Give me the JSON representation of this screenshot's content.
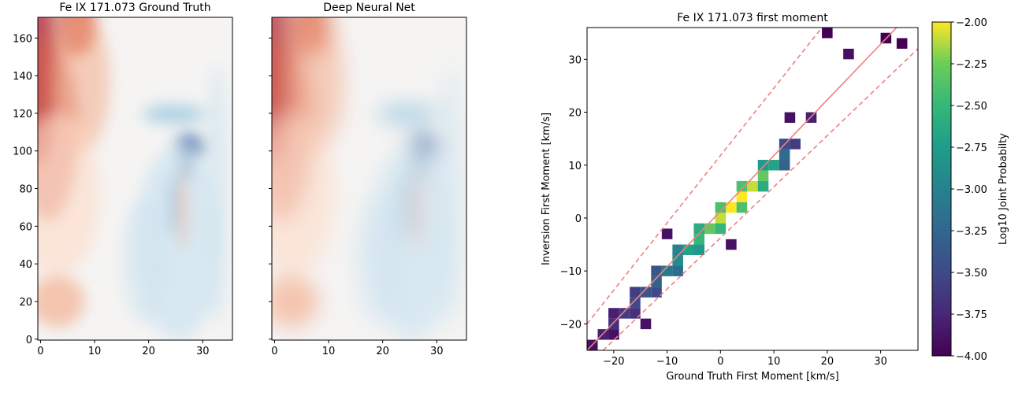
{
  "chart_data": [
    {
      "type": "heatmap",
      "title": "Fe IX 171.073 Ground Truth",
      "xlim": [
        -0.5,
        35.5
      ],
      "ylim": [
        -0.5,
        171
      ],
      "xticks": [
        0,
        10,
        20,
        30
      ],
      "yticks": [
        0,
        20,
        40,
        60,
        80,
        100,
        120,
        140,
        160
      ],
      "ytick_labels": true
    },
    {
      "type": "heatmap",
      "title": "Deep Neural Net",
      "xlim": [
        -0.5,
        35.5
      ],
      "ylim": [
        -0.5,
        171
      ],
      "xticks": [
        0,
        10,
        20,
        30
      ],
      "yticks": [
        0,
        20,
        40,
        60,
        80,
        100,
        120,
        140,
        160
      ],
      "ytick_labels": false
    },
    {
      "type": "hist2d",
      "title": "Fe IX 171.073 first moment",
      "xlabel": "Ground Truth First Moment [km/s]",
      "ylabel": "Inversion First Moment [km/s]",
      "xlim": [
        -25,
        37
      ],
      "ylim": [
        -25,
        36
      ],
      "xticks": [
        {
          "value": -20,
          "label": "−20"
        },
        {
          "value": -10,
          "label": "−10"
        },
        0,
        10,
        20,
        30
      ],
      "yticks": [
        {
          "value": -20,
          "label": "−20"
        },
        {
          "value": -10,
          "label": "−10"
        },
        0,
        10,
        20,
        30
      ],
      "colormap": "viridis",
      "cells": {
        "x": [
          -24,
          -22,
          -20,
          -18,
          -16,
          -14,
          -12,
          -10,
          -8,
          -6,
          -4,
          -2,
          0,
          2,
          4,
          6,
          8,
          10,
          12,
          14,
          -20,
          -16,
          -12,
          -8,
          -4,
          0,
          4,
          8,
          12,
          -20,
          -16,
          -12,
          -8,
          -4,
          0,
          4,
          8,
          12,
          20,
          24,
          31,
          34,
          13,
          -10,
          2,
          -14,
          17
        ],
        "y": [
          -24,
          -22,
          -20,
          -18,
          -16,
          -14,
          -12,
          -10,
          -8,
          -6,
          -4,
          -2,
          0,
          2,
          4,
          6,
          8,
          10,
          12,
          14,
          -18,
          -14,
          -10,
          -6,
          -2,
          2,
          6,
          10,
          14,
          -22,
          -18,
          -14,
          -10,
          -6,
          -2,
          2,
          6,
          10,
          35,
          31,
          34,
          33,
          19,
          -3,
          -5,
          -20,
          19
        ],
        "values": [
          -3.9,
          -3.8,
          -3.7,
          -3.6,
          -3.5,
          -3.4,
          -3.3,
          -3.1,
          -2.9,
          -2.7,
          -2.5,
          -2.3,
          -2.1,
          -2.0,
          -2.0,
          -2.1,
          -2.3,
          -2.7,
          -3.2,
          -3.6,
          -3.8,
          -3.6,
          -3.4,
          -3.0,
          -2.6,
          -2.4,
          -2.4,
          -2.8,
          -3.5,
          -3.9,
          -3.7,
          -3.5,
          -3.2,
          -2.8,
          -2.5,
          -2.4,
          -2.6,
          -3.3,
          -4.0,
          -3.9,
          -4.0,
          -4.0,
          -3.9,
          -3.9,
          -3.9,
          -3.9,
          -3.8
        ]
      },
      "lines": [
        {
          "style": "solid",
          "color": "#f08080",
          "x": [
            -25,
            33
          ],
          "y": [
            -25,
            36
          ]
        },
        {
          "style": "dashed",
          "color": "#f08080",
          "x": [
            -25,
            19
          ],
          "y": [
            -20,
            36
          ]
        },
        {
          "style": "dashed",
          "color": "#f08080",
          "x": [
            -22,
            37
          ],
          "y": [
            -25,
            32
          ]
        }
      ],
      "colorbar": {
        "label": "Log10 Joint Probabilty",
        "clim": [
          -4,
          -2
        ],
        "ticks": [
          {
            "value": -2,
            "label": "−2.00"
          },
          {
            "value": -2.25,
            "label": "−2.25"
          },
          {
            "value": -2.5,
            "label": "−2.50"
          },
          {
            "value": -2.75,
            "label": "−2.75"
          },
          {
            "value": -3,
            "label": "−3.00"
          },
          {
            "value": -3.25,
            "label": "−3.25"
          },
          {
            "value": -3.5,
            "label": "−3.50"
          },
          {
            "value": -3.75,
            "label": "−3.75"
          },
          {
            "value": -4,
            "label": "−4.00"
          }
        ]
      }
    }
  ]
}
